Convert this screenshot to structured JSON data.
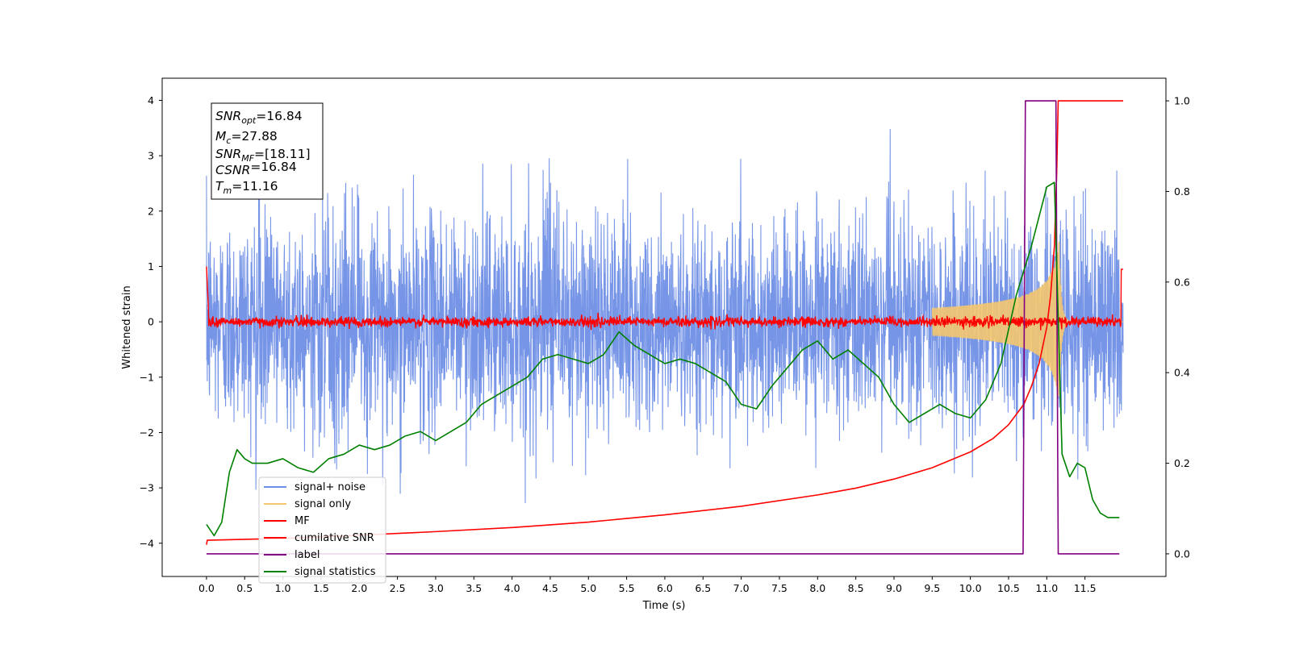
{
  "chart_data": {
    "type": "line",
    "title": "",
    "xlabel": "Time (s)",
    "ylabel": "Whitened strain",
    "xlim": [
      -0.58,
      12.56
    ],
    "ylim": [
      -4.6,
      4.4
    ],
    "y2lim": [
      -0.05,
      1.05
    ],
    "x_ticks": [
      "0.0",
      "0.5",
      "1.0",
      "1.5",
      "2.0",
      "2.5",
      "3.0",
      "3.5",
      "4.0",
      "4.5",
      "5.0",
      "5.5",
      "6.0",
      "6.5",
      "7.0",
      "7.5",
      "8.0",
      "8.5",
      "9.0",
      "9.5",
      "10.0",
      "10.5",
      "11.0",
      "11.5"
    ],
    "y_ticks": [
      "−4",
      "−3",
      "−2",
      "−1",
      "0",
      "1",
      "2",
      "3",
      "4"
    ],
    "y2_ticks": [
      "0.0",
      "0.2",
      "0.4",
      "0.6",
      "0.8",
      "1.0"
    ],
    "legend_position": "lower-left",
    "annotation": {
      "lines": [
        {
          "sym": "SNR",
          "sub": "opt",
          "value": "=16.84"
        },
        {
          "sym": "M",
          "sub": "c",
          "value": "=27.88"
        },
        {
          "sym": "SNR",
          "sub": "MF",
          "value": "=[18.11]"
        },
        {
          "sym": "CSNR",
          "sub": "",
          "value": "=16.84"
        },
        {
          "sym": "T",
          "sub": "m",
          "value": "=11.16"
        }
      ]
    },
    "series": [
      {
        "name": "signal+ noise",
        "color": "#6f8fe6",
        "axis": "left",
        "kind": "noise",
        "x_range": [
          0.0,
          12.0
        ],
        "approx_mean": 0.0,
        "approx_envelope": [
          -3.3,
          3.7
        ]
      },
      {
        "name": "signal only",
        "color": "#f5c66e",
        "axis": "left",
        "kind": "chirp",
        "x_range": [
          9.5,
          12.0
        ],
        "peak_time": 11.16,
        "peak_amplitude": 1.6
      },
      {
        "name": "MF",
        "color": "#ff0000",
        "axis": "left",
        "kind": "mf",
        "x_range": [
          0.0,
          12.0
        ],
        "approx_level": 0.0
      },
      {
        "name": "cumilative SNR",
        "color": "#ff0000",
        "axis": "right",
        "x": [
          0.0,
          0.01,
          0.5,
          1.0,
          2.0,
          3.0,
          4.0,
          5.0,
          6.0,
          7.0,
          8.0,
          8.5,
          9.0,
          9.5,
          10.0,
          10.3,
          10.5,
          10.7,
          10.8,
          10.9,
          11.0,
          11.05,
          11.1,
          11.13,
          11.15,
          11.2,
          12.0
        ],
        "y": [
          0.02,
          0.03,
          0.032,
          0.034,
          0.041,
          0.049,
          0.058,
          0.07,
          0.086,
          0.105,
          0.13,
          0.145,
          0.165,
          0.19,
          0.225,
          0.255,
          0.285,
          0.33,
          0.37,
          0.42,
          0.5,
          0.57,
          0.68,
          0.84,
          1.0,
          1.0,
          1.0
        ]
      },
      {
        "name": "label",
        "color": "#800080",
        "axis": "right",
        "x": [
          0.0,
          10.69,
          10.72,
          11.12,
          11.15,
          11.95
        ],
        "y": [
          0.0,
          0.0,
          1.0,
          1.0,
          0.0,
          0.0
        ]
      },
      {
        "name": "signal statistics",
        "color": "#008000",
        "axis": "right",
        "x": [
          0.0,
          0.1,
          0.2,
          0.3,
          0.4,
          0.5,
          0.6,
          0.8,
          1.0,
          1.2,
          1.4,
          1.6,
          1.8,
          2.0,
          2.2,
          2.4,
          2.6,
          2.8,
          3.0,
          3.2,
          3.4,
          3.6,
          3.8,
          4.0,
          4.2,
          4.4,
          4.6,
          4.8,
          5.0,
          5.2,
          5.4,
          5.6,
          5.8,
          6.0,
          6.2,
          6.4,
          6.6,
          6.8,
          7.0,
          7.2,
          7.4,
          7.6,
          7.8,
          8.0,
          8.2,
          8.4,
          8.6,
          8.8,
          9.0,
          9.2,
          9.4,
          9.6,
          9.8,
          10.0,
          10.2,
          10.4,
          10.6,
          10.8,
          11.0,
          11.1,
          11.2,
          11.3,
          11.4,
          11.5,
          11.6,
          11.7,
          11.8,
          11.95
        ],
        "y": [
          0.065,
          0.04,
          0.07,
          0.18,
          0.23,
          0.21,
          0.2,
          0.2,
          0.21,
          0.19,
          0.18,
          0.21,
          0.22,
          0.24,
          0.23,
          0.24,
          0.26,
          0.27,
          0.25,
          0.27,
          0.29,
          0.33,
          0.35,
          0.37,
          0.39,
          0.43,
          0.44,
          0.43,
          0.42,
          0.44,
          0.49,
          0.46,
          0.44,
          0.42,
          0.43,
          0.42,
          0.4,
          0.38,
          0.33,
          0.32,
          0.37,
          0.41,
          0.45,
          0.47,
          0.43,
          0.45,
          0.42,
          0.39,
          0.33,
          0.29,
          0.31,
          0.33,
          0.31,
          0.3,
          0.34,
          0.42,
          0.57,
          0.68,
          0.81,
          0.82,
          0.22,
          0.17,
          0.2,
          0.19,
          0.12,
          0.09,
          0.08,
          0.08
        ]
      }
    ]
  }
}
